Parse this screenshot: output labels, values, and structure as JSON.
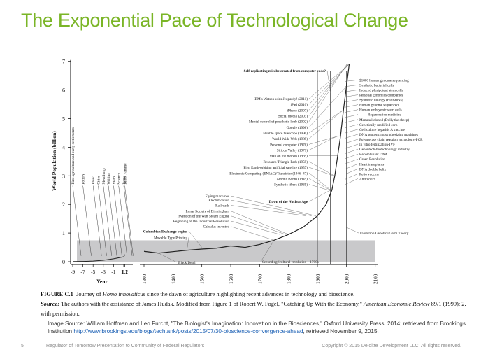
{
  "slide": {
    "title": "The Exponential Pace of Technological Change",
    "page_number": "5",
    "footer_left": "Regulator of Tomorrow Presentation to Community of Federal Regulators",
    "footer_right": "Copyright © 2015 Deloitte Development LLC. All rights reserved."
  },
  "caption": {
    "figure_label": "FIGURE C.1",
    "title_prefix": "Journey of ",
    "title_italic": "Homo innovaticus",
    "title_suffix": " since the dawn of agriculture highlighting recent advances in technology and bioscience.",
    "source_label": "Source:",
    "source_text_prefix": "The authors with the assistance of James Hudak. Modified from Figure 1 of Robert W. Fogel, \"Catching Up With the Economy,\" ",
    "source_text_italic": "American Economic Review",
    "source_text_suffix": " 89/1 (1999): 2, with permission."
  },
  "image_source": {
    "text_before_link": "Image Source: William Hoffman and Leo Furcht, \"The Biologist's Imagination: Innovation in the Biosciences,\" Oxford University Press, 2014; retrieved from Brookings Institution ",
    "link": "http://www.brookings.edu/blogs/techtank/posts/2015/07/30-bioscience-convergence-ahead",
    "text_after_link": ", retrieved November 9, 2015."
  },
  "chart_data": {
    "type": "line",
    "title": "",
    "ylabel": "World Population (billion)",
    "xlabel": "Year",
    "ylim": [
      0,
      7
    ],
    "yticks": [
      "0",
      "1",
      "2",
      "3",
      "4",
      "5",
      "6",
      "7"
    ],
    "ancient_axis": {
      "ticks": [
        "-9",
        "-7",
        "-5",
        "-3",
        "-1",
        "1",
        "1.1",
        "1.2"
      ],
      "unit_note": "thousands of years",
      "series": {
        "x": [
          -9,
          -7,
          -5,
          -3,
          -1,
          1,
          1.1,
          1.2
        ],
        "y": [
          0.005,
          0.01,
          0.02,
          0.05,
          0.1,
          0.17,
          0.2,
          0.25
        ]
      },
      "events": [
        {
          "x": -9,
          "label": "First agriculture and early settlements"
        },
        {
          "x": -7,
          "label": "Pottery"
        },
        {
          "x": -5,
          "label": "Plow"
        },
        {
          "x": -4,
          "label": "Cities"
        },
        {
          "x": -3,
          "label": "Metallurgy"
        },
        {
          "x": -2,
          "label": "Writing"
        },
        {
          "x": -1,
          "label": "Math"
        },
        {
          "x": 0,
          "label": "Science"
        },
        {
          "x": 1,
          "label": "Rome"
        },
        {
          "x": 1.2,
          "label": "Black Famine"
        }
      ]
    },
    "modern_axis": {
      "ticks": [
        "1300",
        "1400",
        "1500",
        "1600",
        "1700",
        "1800",
        "1900",
        "2000",
        "2100"
      ],
      "series": {
        "x": [
          1300,
          1350,
          1400,
          1450,
          1500,
          1550,
          1600,
          1650,
          1700,
          1750,
          1800,
          1850,
          1900,
          1930,
          1950,
          1960,
          1970,
          1980,
          1990,
          2000,
          2010
        ],
        "y": [
          0.36,
          0.3,
          0.35,
          0.4,
          0.44,
          0.47,
          0.55,
          0.5,
          0.6,
          0.75,
          0.95,
          1.2,
          1.6,
          2.0,
          2.5,
          3.0,
          3.7,
          4.4,
          5.3,
          6.1,
          6.9
        ]
      },
      "shaded_band": [
        0,
        0.6
      ],
      "vertical_lines": [
        1900,
        1945,
        2000
      ],
      "left_events": [
        {
          "x": 1895,
          "y": 2.25,
          "label": "Flying machines"
        },
        {
          "x": 1880,
          "y": 2.1,
          "label": "Electrification"
        },
        {
          "x": 1860,
          "y": 1.92,
          "label": "Railroads"
        },
        {
          "x": 1800,
          "y": 1.72,
          "label": "Lunar Society of Birmingham"
        },
        {
          "x": 1790,
          "y": 1.55,
          "label": "Invention of the Watt Steam Engine"
        },
        {
          "x": 1770,
          "y": 1.37,
          "label": "Beginning of the Industrial Revolution"
        },
        {
          "x": 1750,
          "y": 1.18,
          "label": "Calculus invented"
        },
        {
          "x": 1500,
          "y": 1.02,
          "label": "Columbian Exchange begins"
        },
        {
          "x": 1450,
          "y": 0.8,
          "label": "Movable Type Printing"
        }
      ],
      "mid_events": [
        {
          "x": 1946,
          "y": 6.62,
          "label": "Self-replicating micobe created from computer code?"
        },
        {
          "x": 2011,
          "y": 5.65,
          "label": "IBM's Watson wins Jeopardy! (2011)"
        },
        {
          "x": 2010,
          "y": 5.45,
          "label": "iPad (2010)"
        },
        {
          "x": 2007,
          "y": 5.25,
          "label": "iPhone (2007)"
        },
        {
          "x": 2003,
          "y": 5.05,
          "label": "Social media (2003)"
        },
        {
          "x": 2002,
          "y": 4.85,
          "label": "Mental control of prosthetic limb (2002)"
        },
        {
          "x": 1998,
          "y": 4.65,
          "label": "Google (1998)"
        },
        {
          "x": 1990,
          "y": 4.45,
          "label": "Hubble space telescope (1990)"
        },
        {
          "x": 1989,
          "y": 4.25,
          "label": "World Wide Web (1989)"
        },
        {
          "x": 1976,
          "y": 4.05,
          "label": "Personal computer (1976)"
        },
        {
          "x": 1971,
          "y": 3.85,
          "label": "Silicon Valley (1971)"
        },
        {
          "x": 1969,
          "y": 3.65,
          "label": "Man on the mooon (1969)"
        },
        {
          "x": 1959,
          "y": 3.45,
          "label": "Research Triangle Park (1959)"
        },
        {
          "x": 1957,
          "y": 3.25,
          "label": "First Earth-orbiting artificial satellite (1957)"
        },
        {
          "x": 1946,
          "y": 3.05,
          "label": "Electronic Computing (ENIAC)/Transistor (1946–47)"
        },
        {
          "x": 1945,
          "y": 2.85,
          "label": "Atomic Bomb (1945)"
        },
        {
          "x": 1939,
          "y": 2.65,
          "label": "Synthetic fibers (1939)"
        },
        {
          "x": 1945,
          "y": 2.05,
          "label": "Dawn of the Nuclear Age"
        }
      ],
      "right_events": [
        "$1000 human genome sequencing",
        "Synthetic bacterial cells",
        "Induced pluripotent stem cells",
        "Personal genomics companies",
        "Synthetic biology (BioBricks)",
        "Human genome sequenced",
        "Human embryonic stem cells",
        "Regenerative medicine",
        "Mammal cloned (Dolly the sheep)",
        "Genetically modified corn",
        "Cell culture hepatitis A vaccine",
        "DNA sequencing/synthesizing machines",
        "Polymerase chain reaction technology-PCR",
        "In vitro fertilization-IVF",
        "Genentech-biotechnology industry",
        "Recombinant DNA",
        "Green Revolution",
        "Heart transplants",
        "DNA double helix",
        "Polio vaccine",
        "Antibiotics"
      ],
      "low_events": [
        {
          "x": 1350,
          "y": 0.3,
          "label": "Black Death"
        },
        {
          "x": 1750,
          "y": 0.75,
          "label": "Second agricultural revolution—1700s"
        },
        {
          "x": 2000,
          "y": 1.25,
          "label": "Evolution/Genetics/Germ Theory"
        }
      ]
    }
  }
}
